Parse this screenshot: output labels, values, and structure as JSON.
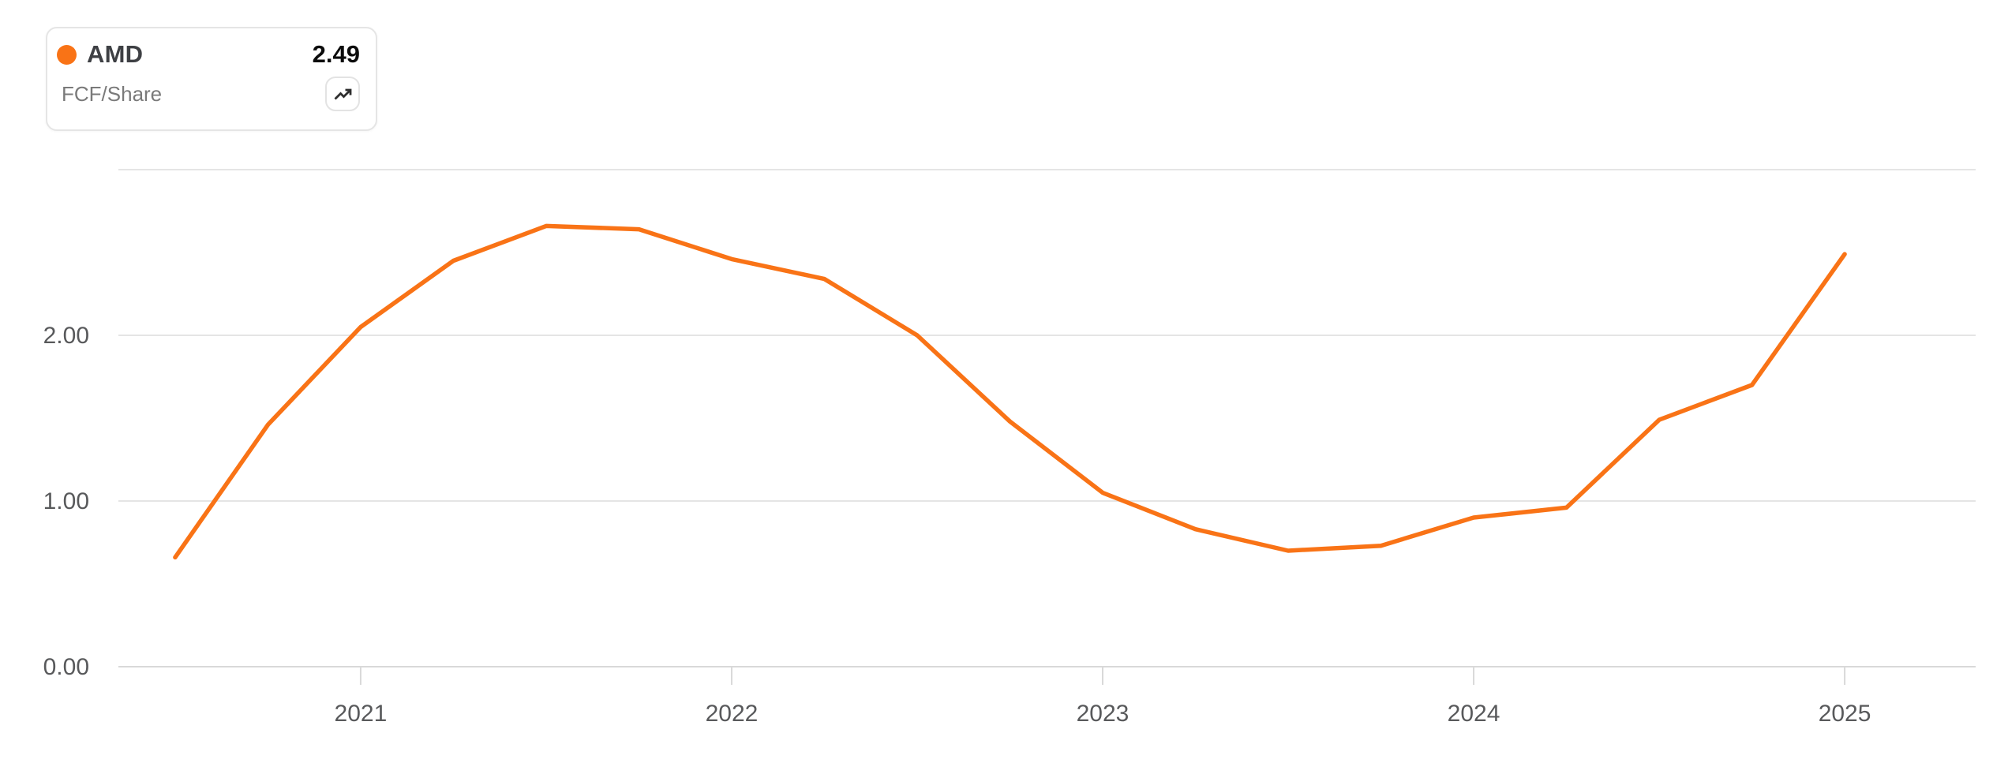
{
  "legend": {
    "ticker": "AMD",
    "value": "2.49",
    "metric": "FCF/Share",
    "series_color": "#F97316",
    "icon": "trending-up"
  },
  "colors": {
    "background": "#ffffff",
    "line": "#F97316",
    "grid": "#e5e5e5",
    "axis": "#d9d9d9",
    "tick_label": "#58595b",
    "ticker_text": "#3e4044",
    "value_text": "#0c0c0c",
    "metric_text": "#7a7a7a",
    "card_border": "#e5e5e5",
    "icon_glyph": "#2e2e2e"
  },
  "chart_data": {
    "type": "line",
    "title": "",
    "xlabel": "",
    "ylabel": "",
    "legend_position": "top-left",
    "grid": "horizontal",
    "xlim": [
      2020.347,
      2025.353
    ],
    "ylim": [
      0,
      3
    ],
    "grid_values": [
      0,
      1,
      2,
      3
    ],
    "y_ticks": {
      "values": [
        0,
        1,
        2
      ],
      "labels": [
        "0.00",
        "1.00",
        "2.00"
      ]
    },
    "x_ticks": {
      "values": [
        2021,
        2022,
        2023,
        2024,
        2025
      ],
      "labels": [
        "2021",
        "2022",
        "2023",
        "2024",
        "2025"
      ]
    },
    "series": [
      {
        "name": "AMD",
        "metric": "FCF/Share",
        "color": "#F97316",
        "x": [
          2020.5,
          2020.75,
          2021.0,
          2021.25,
          2021.5,
          2021.75,
          2022.0,
          2022.25,
          2022.5,
          2022.75,
          2023.0,
          2023.25,
          2023.5,
          2023.75,
          2024.0,
          2024.25,
          2024.5,
          2024.75,
          2025.0
        ],
        "values": [
          0.66,
          1.46,
          2.05,
          2.45,
          2.66,
          2.64,
          2.46,
          2.34,
          2.0,
          1.48,
          1.05,
          0.83,
          0.7,
          0.73,
          0.9,
          0.96,
          1.49,
          1.7,
          2.49
        ],
        "latest_value": 2.49
      }
    ]
  }
}
